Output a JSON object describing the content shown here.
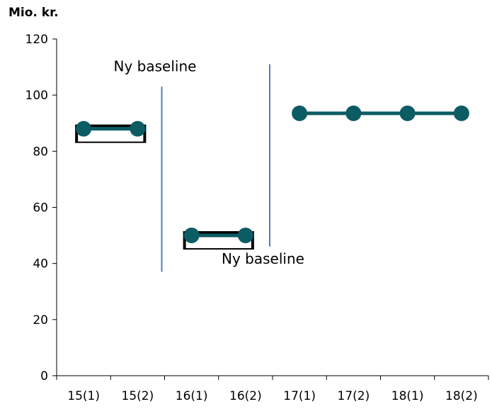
{
  "chart_data": {
    "type": "line",
    "title": "",
    "ylabel": "Mio. kr.",
    "xlabel": "",
    "categories": [
      "15(1)",
      "15(2)",
      "16(1)",
      "16(2)",
      "17(1)",
      "17(2)",
      "18(1)",
      "18(2)"
    ],
    "ylim": [
      0,
      120
    ],
    "yticks": [
      0,
      20,
      40,
      60,
      80,
      100,
      120
    ],
    "grid": false,
    "colors": {
      "series": "#0b5c63",
      "divider": "#4f7fb8"
    },
    "series": [
      {
        "segments": [
          {
            "x": [
              "15(1)",
              "15(2)"
            ],
            "y": [
              88,
              88
            ]
          },
          {
            "x": [
              "16(1)",
              "16(2)"
            ],
            "y": [
              50,
              50
            ]
          },
          {
            "x": [
              "17(1)",
              "17(2)",
              "18(1)",
              "18(2)"
            ],
            "y": [
              93.5,
              93.5,
              93.5,
              93.5
            ]
          }
        ]
      }
    ],
    "annotations": [
      {
        "text": "Ny baseline",
        "between": [
          "15(2)",
          "16(1)"
        ],
        "y_range": [
          37,
          103
        ]
      },
      {
        "text": "Ny baseline",
        "between": [
          "16(2)",
          "17(1)"
        ],
        "y_range": [
          46,
          111
        ]
      }
    ]
  }
}
